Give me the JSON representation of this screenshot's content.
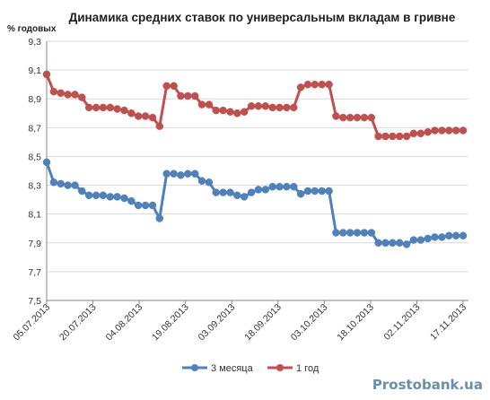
{
  "chart_data": {
    "type": "line",
    "title": "Динамика средних ставок по универсальным вкладам в гривне",
    "ylabel": "% годовых",
    "ylim": [
      7.5,
      9.3
    ],
    "yticks": [
      "9,3",
      "9,1",
      "8,9",
      "8,7",
      "8,5",
      "8,3",
      "8,1",
      "7,9",
      "7,7",
      "7,5"
    ],
    "x_tick_labels": [
      "05.07.2013",
      "20.07.2013",
      "04.08.2013",
      "19.08.2013",
      "03.09.2013",
      "18.09.2013",
      "03.10.2013",
      "18.10.2013",
      "02.11.2013",
      "17.11.2013"
    ],
    "grid": "horizontal",
    "legend_position": "bottom",
    "series": [
      {
        "name": "3 месяца",
        "color": "#4f81bd",
        "values": [
          8.46,
          8.32,
          8.31,
          8.3,
          8.3,
          8.26,
          8.23,
          8.23,
          8.23,
          8.22,
          8.22,
          8.21,
          8.19,
          8.16,
          8.16,
          8.16,
          8.07,
          8.38,
          8.38,
          8.37,
          8.38,
          8.38,
          8.33,
          8.32,
          8.25,
          8.25,
          8.25,
          8.23,
          8.22,
          8.25,
          8.27,
          8.27,
          8.29,
          8.29,
          8.29,
          8.29,
          8.24,
          8.26,
          8.26,
          8.26,
          8.26,
          7.97,
          7.97,
          7.97,
          7.97,
          7.97,
          7.97,
          7.9,
          7.9,
          7.9,
          7.9,
          7.89,
          7.92,
          7.92,
          7.93,
          7.94,
          7.94,
          7.95,
          7.95,
          7.95
        ]
      },
      {
        "name": "1 год",
        "color": "#c0504d",
        "values": [
          9.07,
          8.95,
          8.94,
          8.93,
          8.93,
          8.91,
          8.84,
          8.84,
          8.84,
          8.84,
          8.83,
          8.82,
          8.8,
          8.78,
          8.78,
          8.77,
          8.71,
          8.99,
          8.99,
          8.92,
          8.92,
          8.92,
          8.86,
          8.86,
          8.82,
          8.82,
          8.81,
          8.8,
          8.81,
          8.85,
          8.85,
          8.85,
          8.84,
          8.84,
          8.84,
          8.84,
          8.98,
          9.0,
          9.0,
          9.0,
          9.0,
          8.78,
          8.77,
          8.77,
          8.77,
          8.77,
          8.77,
          8.64,
          8.64,
          8.64,
          8.64,
          8.64,
          8.66,
          8.66,
          8.67,
          8.68,
          8.68,
          8.68,
          8.68,
          8.68
        ]
      }
    ]
  },
  "watermark": "Prostobank.ua"
}
